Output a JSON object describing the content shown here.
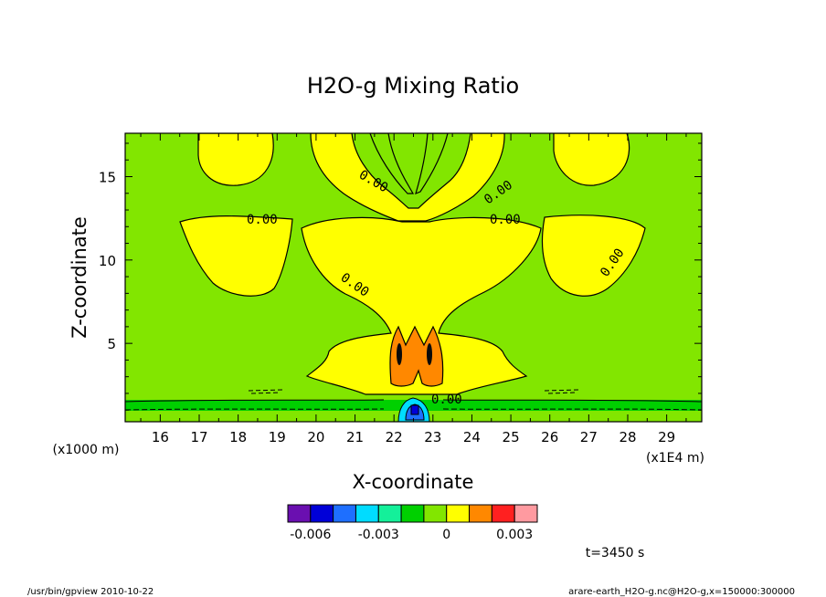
{
  "chart_data": {
    "type": "contour",
    "title": "H2O-g Mixing Ratio",
    "xlabel": "X-coordinate",
    "ylabel": "Z-coordinate",
    "x_unit_label": "(x1E4 m)",
    "y_unit_label": "(x1000 m)",
    "xlim": [
      15.1,
      29.9
    ],
    "ylim": [
      0.3,
      17.6
    ],
    "x_ticks": [
      "16",
      "17",
      "18",
      "19",
      "20",
      "21",
      "22",
      "23",
      "24",
      "25",
      "26",
      "27",
      "28",
      "29"
    ],
    "y_ticks": [
      "5",
      "10",
      "15"
    ],
    "contour_labels": [
      "0.00",
      "0.00",
      "0.00",
      "0.00",
      "0.00",
      "0.00",
      "0.00",
      "0.00"
    ],
    "colorbar": {
      "colors": [
        "#6a0fb0",
        "#0000d8",
        "#1e6fff",
        "#00dcff",
        "#14f09a",
        "#00d000",
        "#82e600",
        "#ffff00",
        "#ff8800",
        "#ff2020",
        "#ff9aa0"
      ],
      "tick_labels": [
        "-0.006",
        "-0.003",
        "0",
        "0.003"
      ]
    },
    "regions": [
      {
        "name": "background",
        "level": 0.0,
        "color": "#82e600"
      },
      {
        "name": "upper-left-lobe",
        "level": 0.0005,
        "color": "#ffff00"
      },
      {
        "name": "upper-right-lobe",
        "level": 0.0005,
        "color": "#ffff00"
      },
      {
        "name": "central-plume",
        "level": 0.0005,
        "color": "#ffff00"
      },
      {
        "name": "plume-core",
        "level": 0.0015,
        "color": "#ff8800"
      },
      {
        "name": "near-surface-band",
        "level": -0.0005,
        "color": "#00d000"
      },
      {
        "name": "surface-minimum",
        "level": -0.005,
        "color": "#0000d8"
      }
    ]
  },
  "annotations": {
    "time": "t=3450 s",
    "footer_left": "/usr/bin/gpview  2010-10-22",
    "footer_right": "arare-earth_H2O-g.nc@H2O-g,x=150000:300000"
  }
}
